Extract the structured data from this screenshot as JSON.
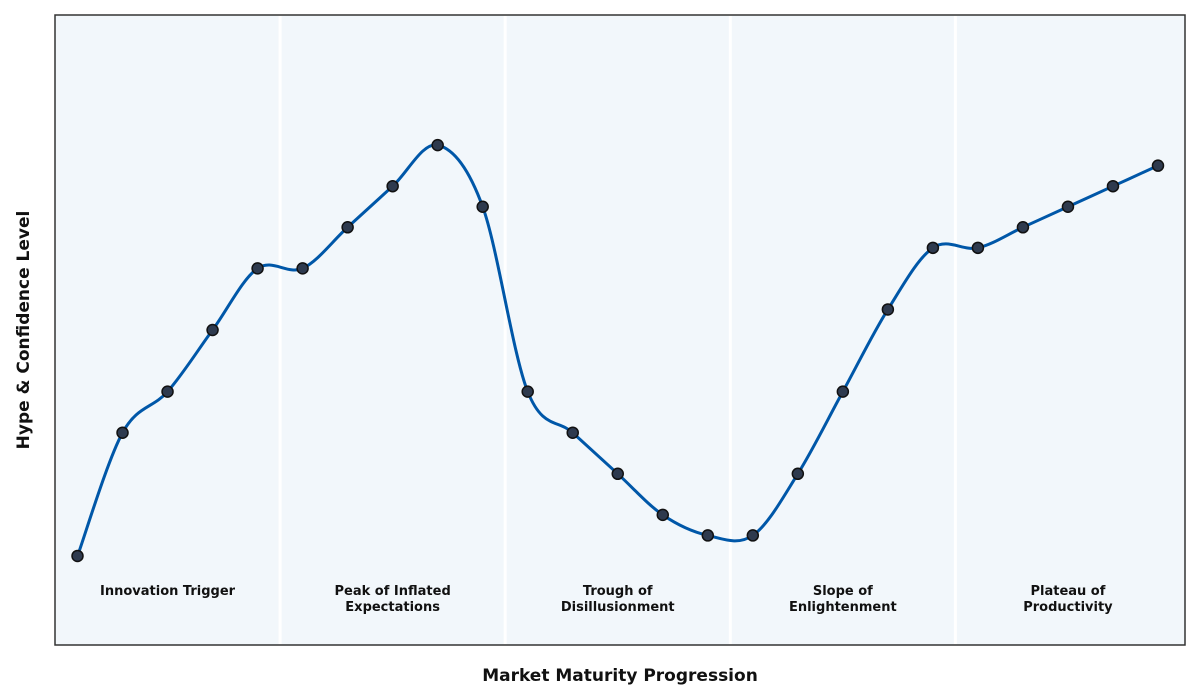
{
  "chart_data": {
    "type": "line",
    "xlabel": "Market Maturity Progression",
    "ylabel": "Hype & Confidence Level",
    "x_ticks_shown": false,
    "y_ticks_shown": false,
    "grid": false,
    "phases": [
      "Innovation Trigger",
      "Peak of Inflated\nExpectations",
      "Trough of\nDisillusionment",
      "Slope of\nEnlightenment",
      "Plateau of\nProductivity"
    ],
    "series": [
      {
        "x": [
          0,
          1,
          2,
          3,
          4,
          5,
          6,
          7,
          8,
          9,
          10,
          11,
          12,
          13,
          14,
          15,
          16,
          17,
          18,
          19,
          20,
          21,
          22,
          23,
          24
        ],
        "values": [
          38,
          56,
          62,
          71,
          80,
          80,
          86,
          92,
          98,
          89,
          62,
          56,
          50,
          44,
          41,
          41,
          50,
          62,
          74,
          83,
          83,
          86,
          89,
          92,
          95
        ]
      }
    ],
    "colors": {
      "line": "#0057a8",
      "marker_fill": "#2e3a4e",
      "marker_edge": "#111111",
      "panel_bg": "#f2f7fb",
      "frame": "#333333"
    }
  }
}
